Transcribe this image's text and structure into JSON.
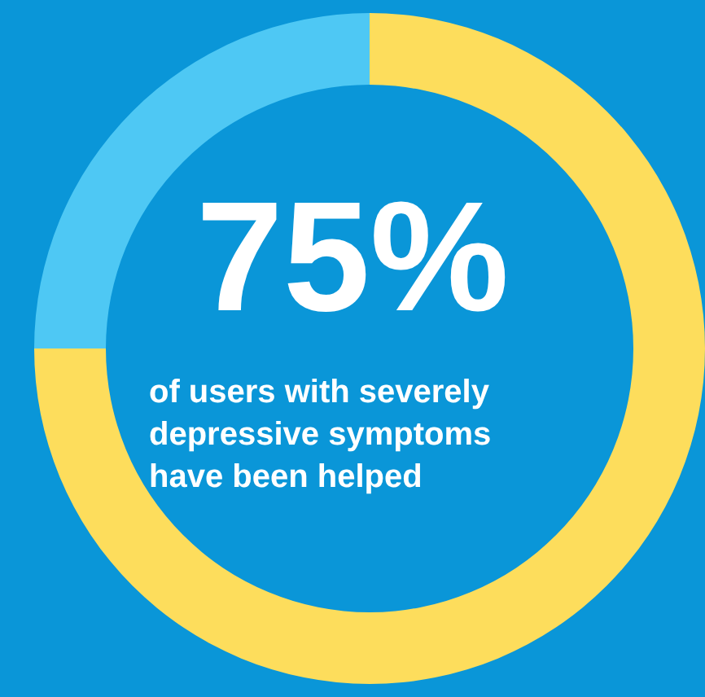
{
  "chart_data": {
    "type": "donut",
    "categories": [
      null,
      null
    ],
    "values": [
      75,
      25
    ],
    "colors": [
      "#fddd5c",
      "#4ec8f4"
    ],
    "value_labels": [
      "75%",
      null
    ],
    "annotations": [
      "of users with severely depressive symptoms have been helped"
    ]
  }
}
